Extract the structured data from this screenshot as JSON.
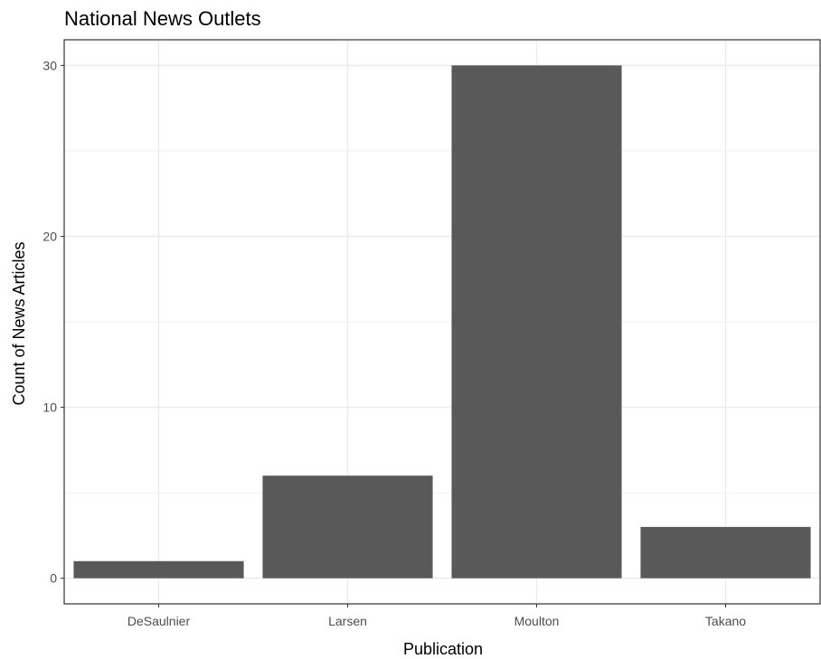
{
  "chart_data": {
    "type": "bar",
    "title": "National News Outlets",
    "xlabel": "Publication",
    "ylabel": "Count of News Articles",
    "categories": [
      "DeSaulnier",
      "Larsen",
      "Moulton",
      "Takano"
    ],
    "values": [
      1,
      6,
      30,
      3
    ],
    "ylim": [
      -1.5,
      31.5
    ],
    "yticks": [
      0,
      10,
      20,
      30
    ],
    "grid": true,
    "legend": "none",
    "bar_color": "#595959",
    "grid_color": "#ebebeb",
    "border_color": "#333333"
  }
}
